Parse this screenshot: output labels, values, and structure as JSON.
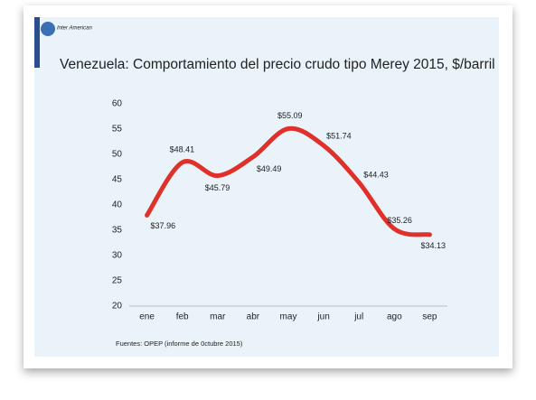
{
  "logo": "Inter American",
  "chart_data": {
    "type": "line",
    "title": "Venezuela: Comportamiento del precio crudo tipo Merey 2015, $/barril",
    "categories": [
      "ene",
      "feb",
      "mar",
      "abr",
      "may",
      "jun",
      "jul",
      "ago",
      "sep"
    ],
    "values": [
      37.96,
      48.41,
      45.79,
      49.49,
      55.09,
      51.74,
      44.43,
      35.26,
      34.13
    ],
    "value_labels": [
      "$37.96",
      "$48.41",
      "$45.79",
      "$49.49",
      "$55.09",
      "$51.74",
      "$44.43",
      "$35.26",
      "$34.13"
    ],
    "color": "#e0302a",
    "ylim": [
      20,
      60
    ],
    "yticks": [
      20,
      25,
      30,
      35,
      40,
      45,
      50,
      55,
      60
    ],
    "grid": false,
    "source": "Fuentes: OPEP (informe de 0ctubre 2015)"
  }
}
